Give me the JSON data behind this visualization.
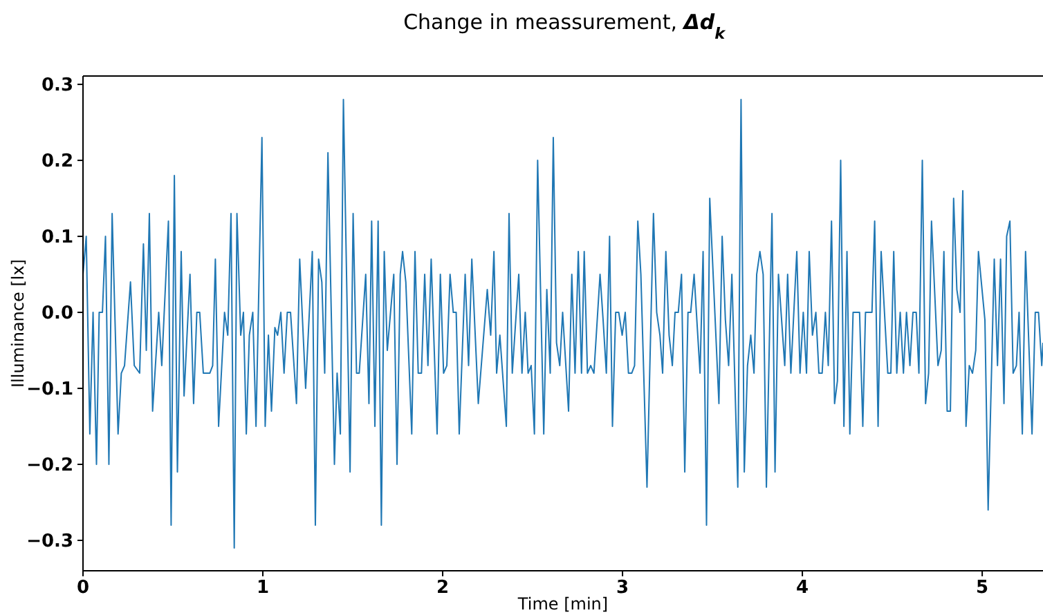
{
  "chart_data": {
    "type": "line",
    "title": "Change in meassurement, Δd$_{k}$",
    "xlabel": "Time [min]",
    "ylabel": "Illuminance [lx]",
    "xlim": [
      0,
      5.338
    ],
    "ylim": [
      -0.34,
      0.311
    ],
    "xticks": [
      0,
      1,
      2,
      3,
      4,
      5
    ],
    "yticks": [
      {
        "value": -0.3,
        "label": "−0.3"
      },
      {
        "value": -0.2,
        "label": "−0.2"
      },
      {
        "value": -0.1,
        "label": "−0.1"
      },
      {
        "value": 0,
        "label": "0.0"
      },
      {
        "value": 0.1,
        "label": "0.1"
      },
      {
        "value": 0.2,
        "label": "0.2"
      },
      {
        "value": 0.3,
        "label": "0.3"
      }
    ],
    "grid": false,
    "marker": "none",
    "line_style": "solid",
    "series": [
      {
        "color": "#1f77b4",
        "x": [
          0,
          0.018,
          0.038,
          0.056,
          0.075,
          0.09,
          0.108,
          0.125,
          0.144,
          0.162,
          0.195,
          0.213,
          0.231,
          0.264,
          0.285,
          0.315,
          0.336,
          0.352,
          0.369,
          0.387,
          0.421,
          0.438,
          0.475,
          0.49,
          0.508,
          0.525,
          0.546,
          0.562,
          0.595,
          0.615,
          0.633,
          0.649,
          0.669,
          0.705,
          0.721,
          0.736,
          0.754,
          0.787,
          0.805,
          0.823,
          0.841,
          0.856,
          0.877,
          0.892,
          0.908,
          0.925,
          0.944,
          0.962,
          0.995,
          1.013,
          1.031,
          1.048,
          1.067,
          1.082,
          1.1,
          1.118,
          1.136,
          1.154,
          1.187,
          1.205,
          1.238,
          1.275,
          1.292,
          1.31,
          1.328,
          1.344,
          1.362,
          1.398,
          1.413,
          1.431,
          1.448,
          1.485,
          1.502,
          1.521,
          1.536,
          1.572,
          1.59,
          1.605,
          1.623,
          1.641,
          1.659,
          1.675,
          1.692,
          1.728,
          1.746,
          1.764,
          1.777,
          1.795,
          1.828,
          1.846,
          1.864,
          1.882,
          1.9,
          1.918,
          1.936,
          1.969,
          1.987,
          2.005,
          2.023,
          2.041,
          2.059,
          2.075,
          2.092,
          2.125,
          2.144,
          2.162,
          2.198,
          2.248,
          2.267,
          2.285,
          2.3,
          2.318,
          2.354,
          2.369,
          2.387,
          2.423,
          2.441,
          2.459,
          2.475,
          2.492,
          2.51,
          2.528,
          2.562,
          2.579,
          2.598,
          2.615,
          2.633,
          2.651,
          2.667,
          2.7,
          2.718,
          2.736,
          2.754,
          2.772,
          2.787,
          2.805,
          2.823,
          2.841,
          2.875,
          2.892,
          2.91,
          2.928,
          2.944,
          2.962,
          2.979,
          2.998,
          3.015,
          3.033,
          3.051,
          3.067,
          3.085,
          3.102,
          3.136,
          3.172,
          3.19,
          3.208,
          3.223,
          3.241,
          3.259,
          3.277,
          3.292,
          3.31,
          3.328,
          3.346,
          3.364,
          3.379,
          3.398,
          3.431,
          3.448,
          3.467,
          3.485,
          3.536,
          3.554,
          3.572,
          3.59,
          3.608,
          3.641,
          3.659,
          3.677,
          3.695,
          3.713,
          3.731,
          3.746,
          3.764,
          3.782,
          3.8,
          3.831,
          3.848,
          3.867,
          3.902,
          3.918,
          3.936,
          3.969,
          3.987,
          4.005,
          4.023,
          4.038,
          4.056,
          4.075,
          4.092,
          4.11,
          4.128,
          4.144,
          4.162,
          4.179,
          4.195,
          4.213,
          4.231,
          4.248,
          4.264,
          4.282,
          4.318,
          4.336,
          4.351,
          4.387,
          4.402,
          4.421,
          4.438,
          4.475,
          4.492,
          4.508,
          4.525,
          4.544,
          4.562,
          4.579,
          4.598,
          4.615,
          4.633,
          4.648,
          4.667,
          4.685,
          4.702,
          4.718,
          4.754,
          4.772,
          4.787,
          4.805,
          4.823,
          4.841,
          4.859,
          4.877,
          4.892,
          4.91,
          4.928,
          4.946,
          4.964,
          4.979,
          5.015,
          5.033,
          5.067,
          5.085,
          5.102,
          5.121,
          5.136,
          5.154,
          5.172,
          5.19,
          5.205,
          5.223,
          5.241,
          5.277,
          5.295,
          5.313,
          5.331,
          5.338
        ],
        "values": [
          0.05,
          0.1,
          -0.16,
          0,
          -0.2,
          0,
          0,
          0.1,
          -0.2,
          0.13,
          -0.16,
          -0.08,
          -0.07,
          0.04,
          -0.07,
          -0.08,
          0.09,
          -0.05,
          0.13,
          -0.13,
          0,
          -0.07,
          0.12,
          -0.28,
          0.18,
          -0.21,
          0.08,
          -0.11,
          0.05,
          -0.12,
          0,
          0,
          -0.08,
          -0.08,
          -0.07,
          0.07,
          -0.15,
          0,
          -0.03,
          0.13,
          -0.31,
          0.13,
          -0.03,
          0,
          -0.16,
          -0.03,
          0,
          -0.15,
          0.23,
          -0.15,
          -0.03,
          -0.13,
          -0.02,
          -0.03,
          0,
          -0.08,
          0,
          0,
          -0.12,
          0.07,
          -0.1,
          0.08,
          -0.28,
          0.07,
          0.04,
          -0.08,
          0.21,
          -0.2,
          -0.08,
          -0.16,
          0.28,
          -0.21,
          0.13,
          -0.08,
          -0.08,
          0.05,
          -0.12,
          0.12,
          -0.15,
          0.12,
          -0.28,
          0.08,
          -0.05,
          0.05,
          -0.2,
          0.05,
          0.08,
          0.04,
          -0.16,
          0.08,
          -0.08,
          -0.08,
          0.05,
          -0.07,
          0.07,
          -0.16,
          0.05,
          -0.08,
          -0.07,
          0.05,
          0,
          0,
          -0.16,
          0.05,
          -0.07,
          0.07,
          -0.12,
          0.03,
          -0.03,
          0.08,
          -0.08,
          -0.03,
          -0.15,
          0.13,
          -0.08,
          0.05,
          -0.08,
          0,
          -0.08,
          -0.07,
          -0.16,
          0.2,
          -0.16,
          0.03,
          -0.08,
          0.23,
          -0.04,
          -0.07,
          0,
          -0.13,
          0.05,
          -0.08,
          0.08,
          -0.08,
          0.08,
          -0.08,
          -0.07,
          -0.08,
          0.05,
          -0.01,
          -0.08,
          0.1,
          -0.15,
          0,
          0,
          -0.03,
          0,
          -0.08,
          -0.08,
          -0.07,
          0.12,
          0.05,
          -0.23,
          0.13,
          0,
          -0.03,
          -0.08,
          0.08,
          -0.03,
          -0.07,
          0,
          0,
          0.05,
          -0.21,
          0,
          0,
          0.05,
          -0.08,
          0.08,
          -0.28,
          0.15,
          -0.12,
          0.1,
          -0.01,
          -0.07,
          0.05,
          -0.23,
          0.28,
          -0.21,
          -0.07,
          -0.03,
          -0.08,
          0.05,
          0.08,
          0.05,
          -0.23,
          0.13,
          -0.21,
          0.05,
          -0.07,
          0.05,
          -0.08,
          0.08,
          -0.08,
          0,
          -0.08,
          0.08,
          -0.03,
          0,
          -0.08,
          -0.08,
          0,
          -0.07,
          0.12,
          -0.12,
          -0.09,
          0.2,
          -0.15,
          0.08,
          -0.16,
          0,
          0,
          -0.15,
          0,
          0,
          0.12,
          -0.15,
          0.08,
          -0.08,
          -0.08,
          0.08,
          -0.08,
          0,
          -0.08,
          0,
          -0.07,
          0,
          0,
          -0.08,
          0.2,
          -0.12,
          -0.08,
          0.12,
          -0.07,
          -0.05,
          0.08,
          -0.13,
          -0.13,
          0.15,
          0.03,
          0,
          0.16,
          -0.15,
          -0.07,
          -0.08,
          -0.05,
          0.08,
          -0.01,
          -0.26,
          0.07,
          -0.07,
          0.07,
          -0.12,
          0.1,
          0.12,
          -0.08,
          -0.07,
          0,
          -0.16,
          0.08,
          -0.16,
          0,
          0,
          -0.07,
          -0.04
        ]
      }
    ]
  }
}
